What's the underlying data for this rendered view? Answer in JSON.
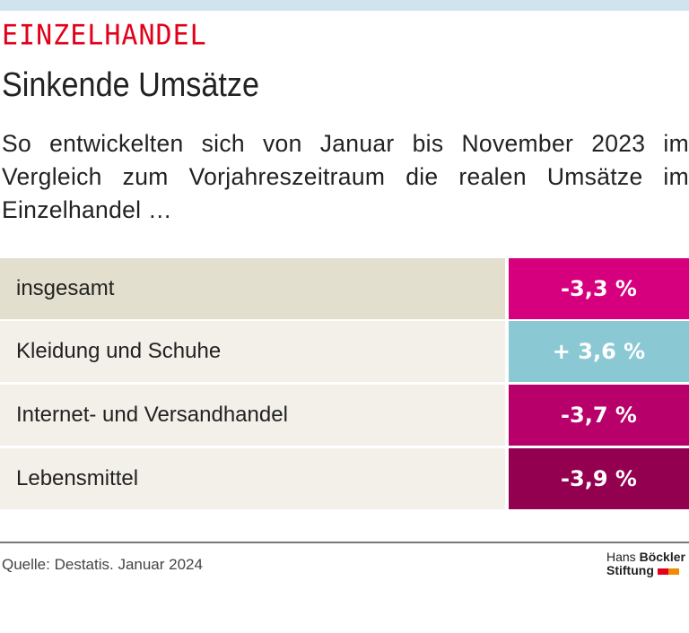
{
  "kicker": "EINZELHANDEL",
  "title": "Sinkende Umsätze",
  "subtitle": "So entwickelten sich von Januar bis November 2023 im Vergleich zum Vorjahreszeitraum die realen Umsätze im Einzelhandel …",
  "rows": [
    {
      "label": "insgesamt",
      "value": "-3,3 %",
      "color": "#d6007e"
    },
    {
      "label": "Kleidung und Schuhe",
      "value": "+ 3,6 %",
      "color": "#8ac8d4"
    },
    {
      "label": "Internet- und Versandhandel",
      "value": "-3,7 %",
      "color": "#b8006b"
    },
    {
      "label": "Lebensmittel",
      "value": "-3,9 %",
      "color": "#930050"
    }
  ],
  "source": "Quelle: Destatis. Januar 2024",
  "logo": {
    "line1_a": "Hans ",
    "line1_b": "Böckler",
    "line2": "Stiftung"
  }
}
